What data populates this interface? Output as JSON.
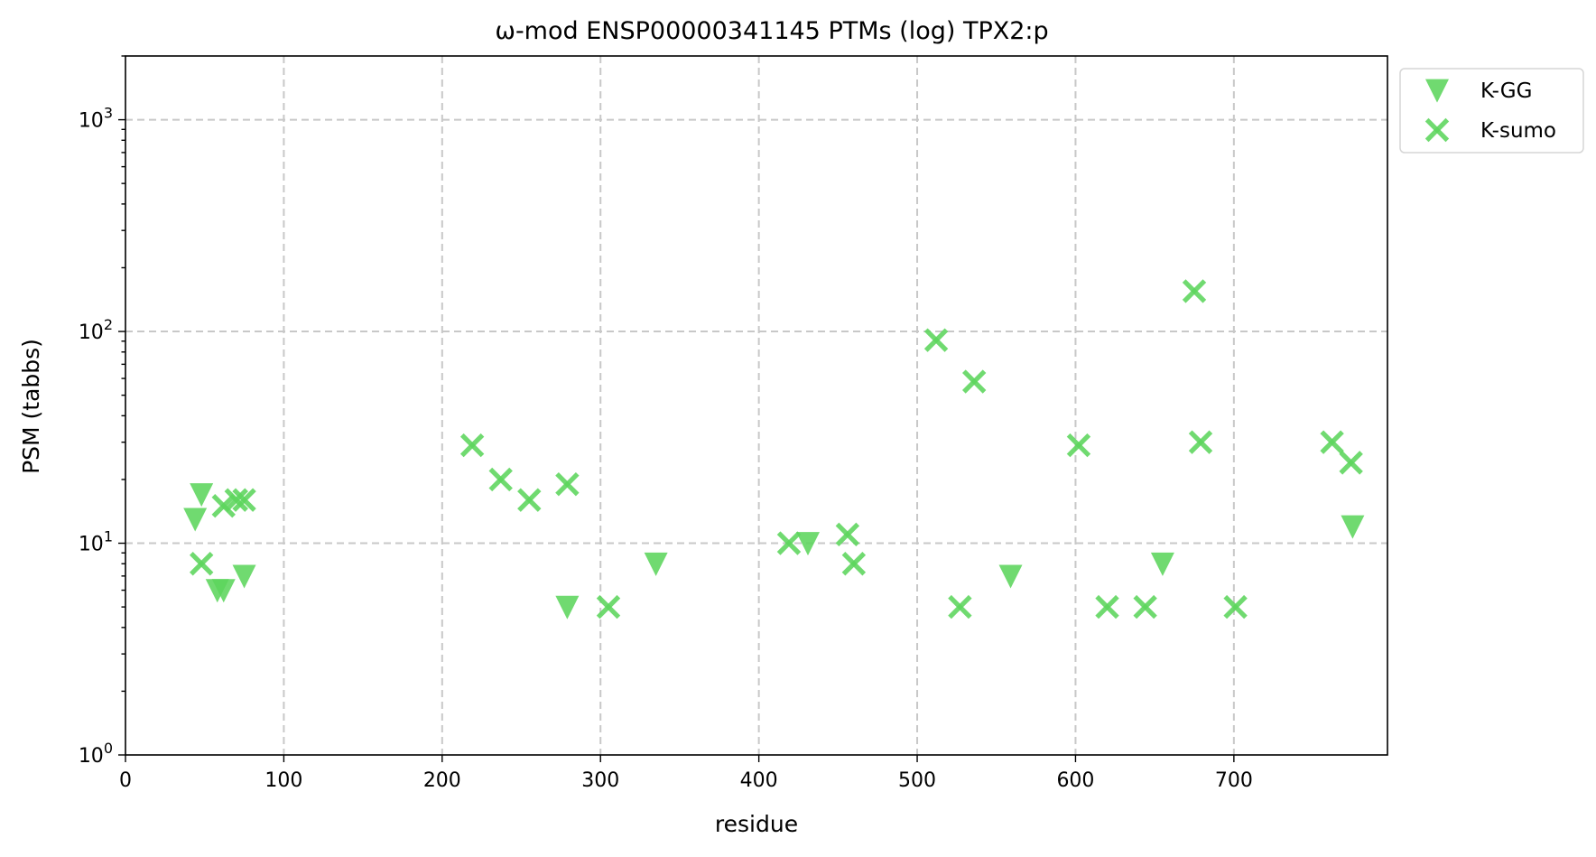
{
  "chart_data": {
    "type": "scatter",
    "title": "ω-mod ENSP00000341145 PTMs (log) TPX2:p",
    "xlabel": "residue",
    "ylabel": "PSM (tabbs)",
    "xlim": [
      0,
      797
    ],
    "ylim": [
      1,
      2000
    ],
    "yscale": "log",
    "grid": true,
    "legend_position": "outside-top-right",
    "xticks": [
      0,
      100,
      200,
      300,
      400,
      500,
      600,
      700
    ],
    "xtick_labels": [
      "0",
      "100",
      "200",
      "300",
      "400",
      "500",
      "600",
      "700"
    ],
    "yticks": [
      1,
      10,
      100,
      1000
    ],
    "ytick_labels": [
      {
        "base": "10",
        "exp": "0"
      },
      {
        "base": "10",
        "exp": "1"
      },
      {
        "base": "10",
        "exp": "2"
      },
      {
        "base": "10",
        "exp": "3"
      }
    ],
    "series": [
      {
        "name": "K-GG",
        "marker": "triangle-down",
        "color": "#5cd55c",
        "points": [
          {
            "x": 44,
            "y": 13
          },
          {
            "x": 48,
            "y": 17
          },
          {
            "x": 58,
            "y": 6
          },
          {
            "x": 62,
            "y": 6
          },
          {
            "x": 75,
            "y": 7
          },
          {
            "x": 279,
            "y": 5
          },
          {
            "x": 335,
            "y": 8
          },
          {
            "x": 431,
            "y": 10
          },
          {
            "x": 559,
            "y": 7
          },
          {
            "x": 655,
            "y": 8
          },
          {
            "x": 775,
            "y": 12
          }
        ]
      },
      {
        "name": "K-sumo",
        "marker": "x-filled",
        "color": "#5cd55c",
        "points": [
          {
            "x": 48,
            "y": 8
          },
          {
            "x": 62,
            "y": 15
          },
          {
            "x": 70,
            "y": 16
          },
          {
            "x": 75,
            "y": 16
          },
          {
            "x": 219,
            "y": 29
          },
          {
            "x": 237,
            "y": 20
          },
          {
            "x": 255,
            "y": 16
          },
          {
            "x": 279,
            "y": 19
          },
          {
            "x": 305,
            "y": 5
          },
          {
            "x": 419,
            "y": 10
          },
          {
            "x": 456,
            "y": 11
          },
          {
            "x": 460,
            "y": 8
          },
          {
            "x": 512,
            "y": 91
          },
          {
            "x": 527,
            "y": 5
          },
          {
            "x": 536,
            "y": 58
          },
          {
            "x": 602,
            "y": 29
          },
          {
            "x": 620,
            "y": 5
          },
          {
            "x": 644,
            "y": 5
          },
          {
            "x": 675,
            "y": 155
          },
          {
            "x": 679,
            "y": 30
          },
          {
            "x": 701,
            "y": 5
          },
          {
            "x": 762,
            "y": 30
          },
          {
            "x": 774,
            "y": 24
          }
        ]
      }
    ]
  }
}
